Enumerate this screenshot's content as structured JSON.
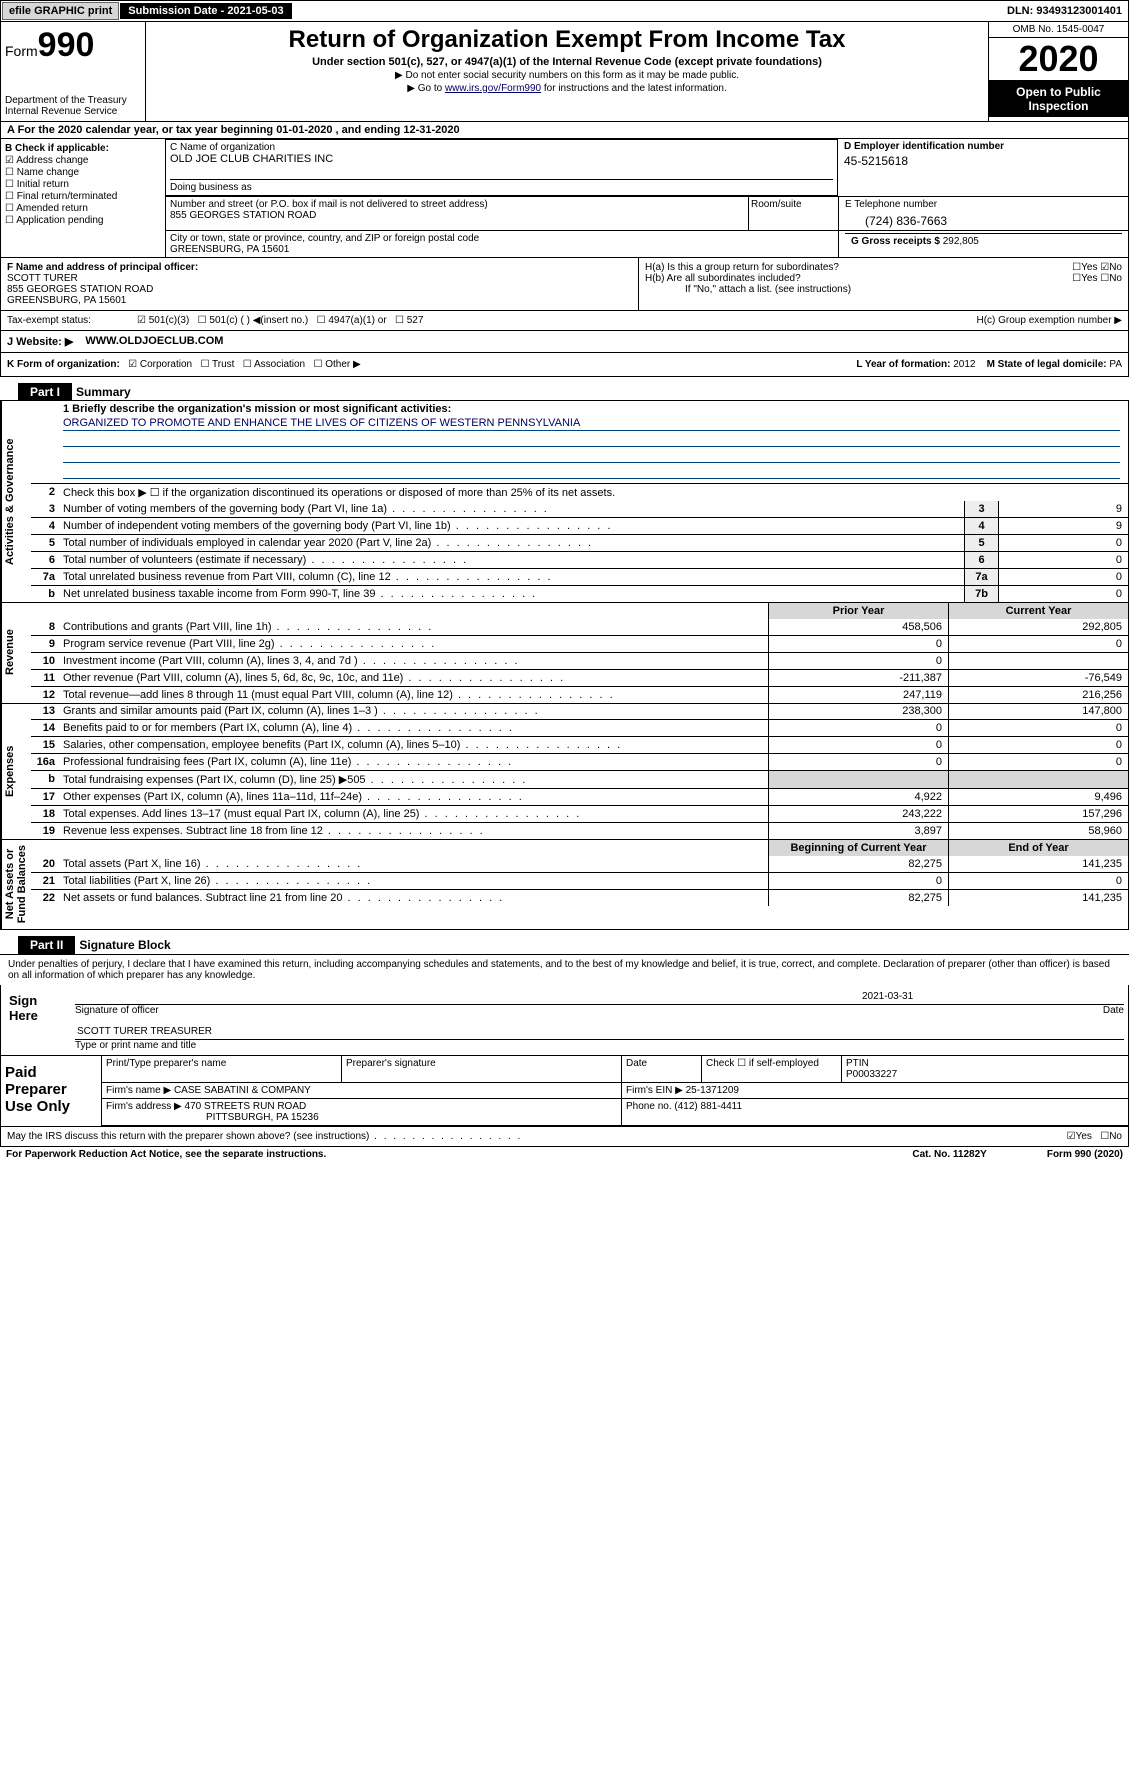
{
  "top": {
    "efile": "efile GRAPHIC print",
    "sub_date_lbl": "Submission Date - 2021-05-03",
    "dln": "DLN: 93493123001401"
  },
  "header": {
    "form_prefix": "Form",
    "form_num": "990",
    "title": "Return of Organization Exempt From Income Tax",
    "subtitle": "Under section 501(c), 527, or 4947(a)(1) of the Internal Revenue Code (except private foundations)",
    "note1": "▶ Do not enter social security numbers on this form as it may be made public.",
    "note2_pre": "▶ Go to ",
    "note2_link": "www.irs.gov/Form990",
    "note2_post": " for instructions and the latest information.",
    "dept": "Department of the Treasury\nInternal Revenue Service",
    "omb": "OMB No. 1545-0047",
    "year": "2020",
    "open": "Open to Public Inspection"
  },
  "lineA": "A For the 2020 calendar year, or tax year beginning 01-01-2020    , and ending 12-31-2020",
  "colB": {
    "label": "B Check if applicable:",
    "items": [
      "Address change",
      "Name change",
      "Initial return",
      "Final return/terminated",
      "Amended return",
      "Application pending"
    ],
    "checked_idx": 0
  },
  "colC": {
    "name_lbl": "C Name of organization",
    "name": "OLD JOE CLUB CHARITIES INC",
    "dba_lbl": "Doing business as",
    "dba": "",
    "addr_lbl": "Number and street (or P.O. box if mail is not delivered to street address)",
    "addr": "855 GEORGES STATION ROAD",
    "room_lbl": "Room/suite",
    "city_lbl": "City or town, state or province, country, and ZIP or foreign postal code",
    "city": "GREENSBURG, PA  15601"
  },
  "colD": {
    "lbl": "D Employer identification number",
    "ein": "45-5215618"
  },
  "colE": {
    "lbl": "E Telephone number",
    "tel": "(724) 836-7663"
  },
  "colG": {
    "lbl": "G Gross receipts $ ",
    "val": "292,805"
  },
  "colF": {
    "lbl": "F  Name and address of principal officer:",
    "name": "SCOTT TURER",
    "addr": "855 GEORGES STATION ROAD",
    "city": "GREENSBURG, PA  15601"
  },
  "colH": {
    "a": "H(a)  Is this a group return for subordinates?",
    "a_yes": "Yes",
    "a_no": "No",
    "b": "H(b)  Are all subordinates included?",
    "b_yes": "Yes",
    "b_no": "No",
    "b_note": "If \"No,\" attach a list. (see instructions)",
    "c": "H(c)  Group exemption number ▶"
  },
  "taxStatus": {
    "lbl": "Tax-exempt status:",
    "opts": [
      "501(c)(3)",
      "501(c) (   ) ◀(insert no.)",
      "4947(a)(1) or",
      "527"
    ]
  },
  "website": {
    "lbl": "J  Website: ▶",
    "url": "WWW.OLDJOECLUB.COM"
  },
  "lineK": {
    "lbl": "K Form of organization:",
    "opts": [
      "Corporation",
      "Trust",
      "Association",
      "Other ▶"
    ],
    "l_lbl": "L Year of formation: ",
    "l_val": "2012",
    "m_lbl": "M State of legal domicile: ",
    "m_val": "PA"
  },
  "part1": {
    "hdr": "Part I",
    "title": "Summary",
    "sideA": "Activities & Governance",
    "sideR": "Revenue",
    "sideE": "Expenses",
    "sideN": "Net Assets or\nFund Balances",
    "r1_lbl": "1  Briefly describe the organization's mission or most significant activities:",
    "r1_val": "ORGANIZED TO PROMOTE AND ENHANCE THE LIVES OF CITIZENS OF WESTERN PENNSYLVANIA",
    "r2": "Check this box ▶ ☐  if the organization discontinued its operations or disposed of more than 25% of its net assets.",
    "rows_a": [
      {
        "n": "3",
        "t": "Number of voting members of the governing body (Part VI, line 1a)",
        "box": "3",
        "v": "9"
      },
      {
        "n": "4",
        "t": "Number of independent voting members of the governing body (Part VI, line 1b)",
        "box": "4",
        "v": "9"
      },
      {
        "n": "5",
        "t": "Total number of individuals employed in calendar year 2020 (Part V, line 2a)",
        "box": "5",
        "v": "0"
      },
      {
        "n": "6",
        "t": "Total number of volunteers (estimate if necessary)",
        "box": "6",
        "v": "0"
      },
      {
        "n": "7a",
        "t": "Total unrelated business revenue from Part VIII, column (C), line 12",
        "box": "7a",
        "v": "0"
      },
      {
        "n": "b",
        "t": "Net unrelated business taxable income from Form 990-T, line 39",
        "box": "7b",
        "v": "0"
      }
    ],
    "prior_hdr": "Prior Year",
    "curr_hdr": "Current Year",
    "rows_r": [
      {
        "n": "8",
        "t": "Contributions and grants (Part VIII, line 1h)",
        "p": "458,506",
        "c": "292,805"
      },
      {
        "n": "9",
        "t": "Program service revenue (Part VIII, line 2g)",
        "p": "0",
        "c": "0"
      },
      {
        "n": "10",
        "t": "Investment income (Part VIII, column (A), lines 3, 4, and 7d )",
        "p": "0",
        "c": ""
      },
      {
        "n": "11",
        "t": "Other revenue (Part VIII, column (A), lines 5, 6d, 8c, 9c, 10c, and 11e)",
        "p": "-211,387",
        "c": "-76,549"
      },
      {
        "n": "12",
        "t": "Total revenue—add lines 8 through 11 (must equal Part VIII, column (A), line 12)",
        "p": "247,119",
        "c": "216,256"
      }
    ],
    "rows_e": [
      {
        "n": "13",
        "t": "Grants and similar amounts paid (Part IX, column (A), lines 1–3 )",
        "p": "238,300",
        "c": "147,800"
      },
      {
        "n": "14",
        "t": "Benefits paid to or for members (Part IX, column (A), line 4)",
        "p": "0",
        "c": "0"
      },
      {
        "n": "15",
        "t": "Salaries, other compensation, employee benefits (Part IX, column (A), lines 5–10)",
        "p": "0",
        "c": "0"
      },
      {
        "n": "16a",
        "t": "Professional fundraising fees (Part IX, column (A), line 11e)",
        "p": "0",
        "c": "0"
      },
      {
        "n": "b",
        "t": "Total fundraising expenses (Part IX, column (D), line 25) ▶505",
        "p": "",
        "c": "",
        "shade": true
      },
      {
        "n": "17",
        "t": "Other expenses (Part IX, column (A), lines 11a–11d, 11f–24e)",
        "p": "4,922",
        "c": "9,496"
      },
      {
        "n": "18",
        "t": "Total expenses. Add lines 13–17 (must equal Part IX, column (A), line 25)",
        "p": "243,222",
        "c": "157,296"
      },
      {
        "n": "19",
        "t": "Revenue less expenses. Subtract line 18 from line 12",
        "p": "3,897",
        "c": "58,960"
      }
    ],
    "beg_hdr": "Beginning of Current Year",
    "end_hdr": "End of Year",
    "rows_n": [
      {
        "n": "20",
        "t": "Total assets (Part X, line 16)",
        "p": "82,275",
        "c": "141,235"
      },
      {
        "n": "21",
        "t": "Total liabilities (Part X, line 26)",
        "p": "0",
        "c": "0"
      },
      {
        "n": "22",
        "t": "Net assets or fund balances. Subtract line 21 from line 20",
        "p": "82,275",
        "c": "141,235"
      }
    ]
  },
  "part2": {
    "hdr": "Part II",
    "title": "Signature Block",
    "perjury": "Under penalties of perjury, I declare that I have examined this return, including accompanying schedules and statements, and to the best of my knowledge and belief, it is true, correct, and complete. Declaration of preparer (other than officer) is based on all information of which preparer has any knowledge.",
    "sign_here": "Sign Here",
    "sig_officer": "Signature of officer",
    "sig_date": "2021-03-31",
    "date_lbl": "Date",
    "officer_name": "SCOTT TURER  TREASURER",
    "officer_name_lbl": "Type or print name and title",
    "paid_prep": "Paid Preparer Use Only",
    "prep_name_lbl": "Print/Type preparer's name",
    "prep_sig_lbl": "Preparer's signature",
    "prep_date_lbl": "Date",
    "check_self": "Check ☐ if self-employed",
    "ptin_lbl": "PTIN",
    "ptin": "P00033227",
    "firm_name_lbl": "Firm's name   ▶",
    "firm_name": "CASE SABATINI & COMPANY",
    "firm_ein_lbl": "Firm's EIN ▶",
    "firm_ein": "25-1371209",
    "firm_addr_lbl": "Firm's address ▶",
    "firm_addr": "470 STREETS RUN ROAD",
    "firm_city": "PITTSBURGH, PA  15236",
    "phone_lbl": "Phone no.",
    "phone": "(412) 881-4411",
    "discuss": "May the IRS discuss this return with the preparer shown above? (see instructions)",
    "yes": "Yes",
    "no": "No"
  },
  "footer": {
    "pra": "For Paperwork Reduction Act Notice, see the separate instructions.",
    "cat": "Cat. No. 11282Y",
    "form": "Form 990 (2020)"
  }
}
